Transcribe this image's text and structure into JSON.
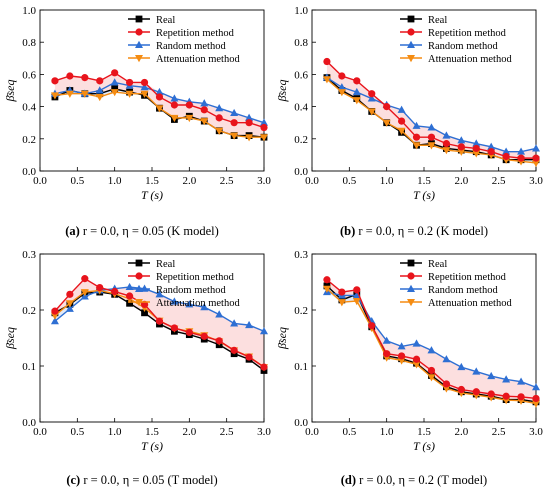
{
  "colors": {
    "Real": "#000000",
    "Repetition method": "#e8141c",
    "Random method": "#2e6fd3",
    "Attenuation method": "#f58c12",
    "fill_upper": "#dfe8f7",
    "fill_lower": "#fbd9d9"
  },
  "markers": {
    "Real": "square",
    "Repetition method": "circle",
    "Random method": "triangle-up",
    "Attenuation method": "triangle-down"
  },
  "chart_data": [
    {
      "id": "a",
      "type": "line",
      "caption": {
        "label": "(a)",
        "r": "r = 0.0, ",
        "eta": "η = 0.05 (K model)"
      },
      "xlabel": "T (s)",
      "ylabel": "β̄seq",
      "xlim": [
        0,
        3.0
      ],
      "ylim": [
        0,
        1.0
      ],
      "xticks": [
        "0.0",
        "0.5",
        "1.0",
        "1.5",
        "2.0",
        "2.5",
        "3.0"
      ],
      "yticks": [
        "0.0",
        "0.2",
        "0.4",
        "0.6",
        "0.8",
        "1.0"
      ],
      "legend": [
        "Real",
        "Repetition method",
        "Random method",
        "Attenuation method"
      ],
      "x": [
        0.2,
        0.4,
        0.6,
        0.8,
        1.0,
        1.2,
        1.4,
        1.6,
        1.8,
        2.0,
        2.2,
        2.4,
        2.6,
        2.8,
        3.0
      ],
      "series": [
        {
          "name": "Real",
          "values": [
            0.46,
            0.5,
            0.48,
            0.48,
            0.51,
            0.49,
            0.47,
            0.39,
            0.32,
            0.34,
            0.31,
            0.25,
            0.22,
            0.22,
            0.21
          ]
        },
        {
          "name": "Repetition method",
          "values": [
            0.56,
            0.59,
            0.58,
            0.56,
            0.61,
            0.55,
            0.55,
            0.46,
            0.41,
            0.41,
            0.38,
            0.33,
            0.3,
            0.3,
            0.27
          ]
        },
        {
          "name": "Random method",
          "values": [
            0.48,
            0.5,
            0.48,
            0.5,
            0.55,
            0.53,
            0.52,
            0.49,
            0.45,
            0.43,
            0.42,
            0.39,
            0.36,
            0.33,
            0.3
          ]
        },
        {
          "name": "Attenuation method",
          "values": [
            0.47,
            0.48,
            0.48,
            0.46,
            0.49,
            0.48,
            0.48,
            0.39,
            0.33,
            0.33,
            0.31,
            0.25,
            0.22,
            0.21,
            0.21
          ]
        }
      ]
    },
    {
      "id": "b",
      "type": "line",
      "caption": {
        "label": "(b)",
        "r": "r = 0.0, ",
        "eta": "η = 0.2 (K model)"
      },
      "xlabel": "T (s)",
      "ylabel": "β̄seq",
      "xlim": [
        0,
        3.0
      ],
      "ylim": [
        0,
        1.0
      ],
      "xticks": [
        "0.0",
        "0.5",
        "1.0",
        "1.5",
        "2.0",
        "2.5",
        "3.0"
      ],
      "yticks": [
        "0.0",
        "0.2",
        "0.4",
        "0.6",
        "0.8",
        "1.0"
      ],
      "legend": [
        "Real",
        "Repetition method",
        "Random method",
        "Attenuation method"
      ],
      "x": [
        0.2,
        0.4,
        0.6,
        0.8,
        1.0,
        1.2,
        1.4,
        1.6,
        1.8,
        2.0,
        2.2,
        2.4,
        2.6,
        2.8,
        3.0
      ],
      "series": [
        {
          "name": "Real",
          "values": [
            0.58,
            0.5,
            0.45,
            0.37,
            0.3,
            0.24,
            0.16,
            0.17,
            0.14,
            0.13,
            0.12,
            0.1,
            0.07,
            0.07,
            0.07
          ]
        },
        {
          "name": "Repetition method",
          "values": [
            0.68,
            0.59,
            0.56,
            0.48,
            0.4,
            0.31,
            0.21,
            0.21,
            0.17,
            0.15,
            0.14,
            0.12,
            0.09,
            0.08,
            0.08
          ]
        },
        {
          "name": "Random method",
          "values": [
            0.58,
            0.52,
            0.49,
            0.45,
            0.41,
            0.38,
            0.28,
            0.27,
            0.22,
            0.19,
            0.17,
            0.15,
            0.12,
            0.12,
            0.14
          ]
        },
        {
          "name": "Attenuation method",
          "values": [
            0.57,
            0.49,
            0.44,
            0.37,
            0.3,
            0.25,
            0.16,
            0.16,
            0.13,
            0.12,
            0.11,
            0.1,
            0.07,
            0.06,
            0.05
          ]
        }
      ]
    },
    {
      "id": "c",
      "type": "line",
      "caption": {
        "label": "(c)",
        "r": "r = 0.0, ",
        "eta": "η = 0.05 (T model)"
      },
      "xlabel": "T (s)",
      "ylabel": "β̄seq",
      "xlim": [
        0,
        3.0
      ],
      "ylim": [
        0,
        0.3
      ],
      "xticks": [
        "0.0",
        "0.5",
        "1.0",
        "1.5",
        "2.0",
        "2.5",
        "3.0"
      ],
      "yticks": [
        "0.0",
        "0.1",
        "0.2",
        "0.3"
      ],
      "legend": [
        "Real",
        "Repetition method",
        "Random method",
        "Attenuation method"
      ],
      "x": [
        0.2,
        0.4,
        0.6,
        0.8,
        1.0,
        1.2,
        1.4,
        1.6,
        1.8,
        2.0,
        2.2,
        2.4,
        2.6,
        2.8,
        3.0
      ],
      "series": [
        {
          "name": "Real",
          "values": [
            0.195,
            0.21,
            0.23,
            0.232,
            0.228,
            0.212,
            0.195,
            0.175,
            0.162,
            0.156,
            0.148,
            0.138,
            0.122,
            0.112,
            0.092
          ]
        },
        {
          "name": "Repetition method",
          "values": [
            0.198,
            0.228,
            0.256,
            0.24,
            0.233,
            0.225,
            0.21,
            0.18,
            0.168,
            0.16,
            0.153,
            0.145,
            0.128,
            0.116,
            0.098
          ]
        },
        {
          "name": "Random method",
          "values": [
            0.18,
            0.202,
            0.224,
            0.235,
            0.238,
            0.241,
            0.238,
            0.228,
            0.215,
            0.21,
            0.205,
            0.192,
            0.176,
            0.173,
            0.162
          ]
        },
        {
          "name": "Attenuation method",
          "values": [
            0.19,
            0.212,
            0.232,
            0.235,
            0.229,
            0.22,
            0.204,
            0.181,
            0.167,
            0.162,
            0.155,
            0.144,
            0.128,
            0.117,
            0.098
          ]
        }
      ]
    },
    {
      "id": "d",
      "type": "line",
      "caption": {
        "label": "(d)",
        "r": "r = 0.0, ",
        "eta": "η = 0.2 (T model)"
      },
      "xlabel": "T (s)",
      "ylabel": "β̄seq",
      "xlim": [
        0,
        3.0
      ],
      "ylim": [
        0,
        0.3
      ],
      "xticks": [
        "0.0",
        "0.5",
        "1.0",
        "1.5",
        "2.0",
        "2.5",
        "3.0"
      ],
      "yticks": [
        "0.0",
        "0.1",
        "0.2",
        "0.3"
      ],
      "legend": [
        "Real",
        "Repetition method",
        "Random method",
        "Attenuation method"
      ],
      "x": [
        0.2,
        0.4,
        0.6,
        0.8,
        1.0,
        1.2,
        1.4,
        1.6,
        1.8,
        2.0,
        2.2,
        2.4,
        2.6,
        2.8,
        3.0
      ],
      "series": [
        {
          "name": "Real",
          "values": [
            0.243,
            0.218,
            0.228,
            0.17,
            0.118,
            0.113,
            0.105,
            0.083,
            0.063,
            0.054,
            0.05,
            0.046,
            0.04,
            0.04,
            0.036
          ]
        },
        {
          "name": "Repetition method",
          "values": [
            0.254,
            0.232,
            0.236,
            0.172,
            0.122,
            0.118,
            0.112,
            0.092,
            0.068,
            0.058,
            0.054,
            0.05,
            0.046,
            0.045,
            0.042
          ]
        },
        {
          "name": "Random method",
          "values": [
            0.232,
            0.226,
            0.226,
            0.18,
            0.145,
            0.135,
            0.14,
            0.128,
            0.112,
            0.098,
            0.09,
            0.082,
            0.076,
            0.072,
            0.062
          ]
        },
        {
          "name": "Attenuation method",
          "values": [
            0.238,
            0.214,
            0.216,
            0.168,
            0.115,
            0.11,
            0.103,
            0.08,
            0.06,
            0.052,
            0.048,
            0.044,
            0.039,
            0.038,
            0.033
          ]
        }
      ]
    }
  ]
}
